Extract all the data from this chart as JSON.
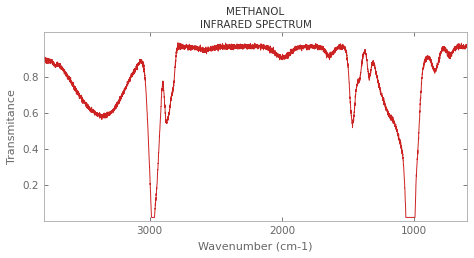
{
  "title_line1": "METHANOL",
  "title_line2": "INFRARED SPECTRUM",
  "xlabel": "Wavenumber (cm-1)",
  "ylabel": "Transmitance",
  "xlim": [
    3800,
    600
  ],
  "ylim": [
    0.0,
    1.05
  ],
  "line_color": "#cc2222",
  "line_width": 0.7,
  "bg_color": "#ffffff",
  "tick_label_color": "#666666",
  "title_color": "#333333",
  "xticks": [
    3000,
    2000,
    1000
  ],
  "yticks": [
    0.2,
    0.4,
    0.6,
    0.8
  ]
}
